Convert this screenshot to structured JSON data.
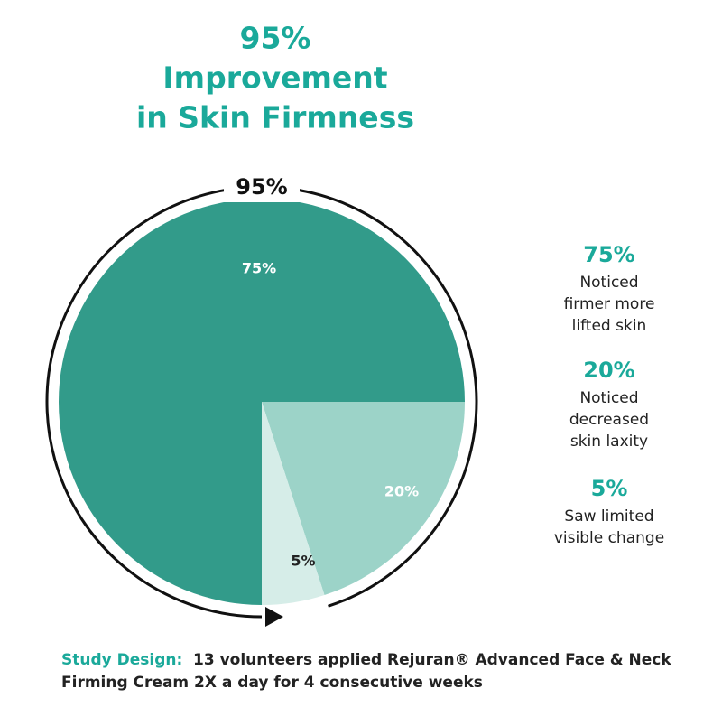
{
  "chart_data": {
    "type": "pie",
    "title": [
      "95%",
      "Improvement",
      "in Skin Firmness"
    ],
    "ring_value": 95,
    "ring_label": "95%",
    "categories": [
      [
        "Noticed",
        "firmer more",
        "lifted skin"
      ],
      [
        "Noticed",
        "decreased",
        "skin laxity"
      ],
      [
        "Saw limited",
        "visible change"
      ]
    ],
    "values": [
      75,
      20,
      5
    ],
    "value_labels": [
      "75%",
      "20%",
      "5%"
    ],
    "colors": [
      "#329b8a",
      "#9cd3c8",
      "#d6ede8"
    ],
    "footer": {
      "lead": "Study Design:",
      "text": [
        "13 volunteers applied Rejuran® Advanced Face & Neck",
        "Firming Cream 2X a day for 4 consecutive weeks"
      ]
    }
  }
}
